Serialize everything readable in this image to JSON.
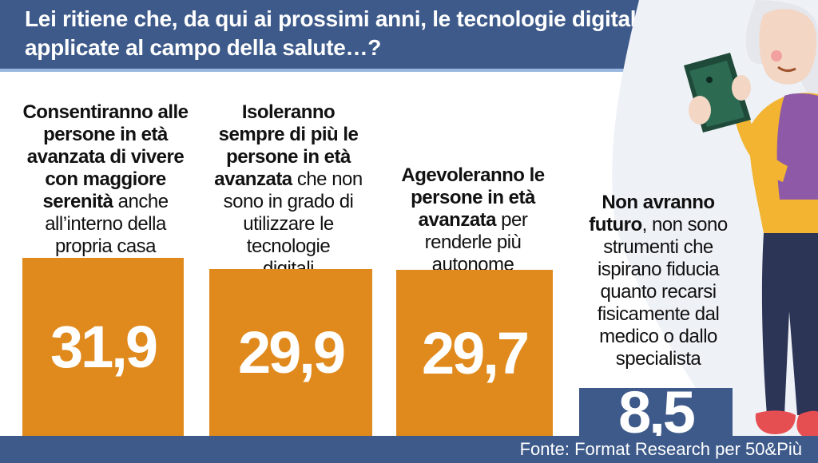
{
  "title": "Lei ritiene che, da qui ai prossimi anni, le tecnologie digitali, applicate al campo della salute…?",
  "title_lines": [
    "Lei ritiene che, da qui ai prossimi anni, le tecnologie digitali,",
    "applicate al campo della salute…?"
  ],
  "source": "Fonte: Format Research per 50&Più",
  "colors": {
    "primary_bar": "#e08a1e",
    "secondary_bar": "#3d5a8a",
    "header": "#3d5a8a"
  },
  "items": [
    {
      "label_lines": [
        [
          {
            "t": "Consentiranno alle",
            "b": true
          }
        ],
        [
          {
            "t": "persone in età",
            "b": true
          }
        ],
        [
          {
            "t": "avanzata di vivere",
            "b": true
          }
        ],
        [
          {
            "t": "con maggiore",
            "b": true
          }
        ],
        [
          {
            "t": "serenità",
            "b": true
          },
          {
            "t": " anche",
            "b": false
          }
        ],
        [
          {
            "t": "all’interno della",
            "b": false
          }
        ],
        [
          {
            "t": "propria casa",
            "b": false
          }
        ]
      ],
      "value_label": "31,9"
    },
    {
      "label_lines": [
        [
          {
            "t": "Isoleranno",
            "b": true
          }
        ],
        [
          {
            "t": "sempre di più le",
            "b": true
          }
        ],
        [
          {
            "t": "persone in età",
            "b": true
          }
        ],
        [
          {
            "t": "avanzata",
            "b": true
          },
          {
            "t": " che non",
            "b": false
          }
        ],
        [
          {
            "t": "sono in grado di",
            "b": false
          }
        ],
        [
          {
            "t": "utilizzare le",
            "b": false
          }
        ],
        [
          {
            "t": "tecnologie",
            "b": false
          }
        ],
        [
          {
            "t": "digitali",
            "b": false
          }
        ]
      ],
      "value_label": "29,9"
    },
    {
      "label_lines": [
        [
          {
            "t": "Agevoleranno le",
            "b": true
          }
        ],
        [
          {
            "t": "persone in età",
            "b": true
          }
        ],
        [
          {
            "t": "avanzata",
            "b": true
          },
          {
            "t": " per",
            "b": false
          }
        ],
        [
          {
            "t": "renderle più",
            "b": false
          }
        ],
        [
          {
            "t": "autonome",
            "b": false
          }
        ]
      ],
      "value_label": "29,7"
    },
    {
      "label_lines": [
        [
          {
            "t": "Non avranno",
            "b": true
          }
        ],
        [
          {
            "t": "futuro",
            "b": true
          },
          {
            "t": ", non sono",
            "b": false
          }
        ],
        [
          {
            "t": "strumenti che",
            "b": false
          }
        ],
        [
          {
            "t": "ispirano fiducia",
            "b": false
          }
        ],
        [
          {
            "t": "quanto recarsi",
            "b": false
          }
        ],
        [
          {
            "t": "fisicamente dal",
            "b": false
          }
        ],
        [
          {
            "t": "medico o dallo",
            "b": false
          }
        ],
        [
          {
            "t": "specialista",
            "b": false
          }
        ]
      ],
      "value_label": "8,5"
    }
  ],
  "chart_data": {
    "type": "bar",
    "title": "Lei ritiene che, da qui ai prossimi anni, le tecnologie digitali, applicate al campo della salute…?",
    "categories": [
      "Consentiranno alle persone in età avanzata di vivere con maggiore serenità anche all’interno della propria casa",
      "Isoleranno sempre di più le persone in età avanzata che non sono in grado di utilizzare le tecnologie digitali",
      "Agevoleranno le persone in età avanzata per renderle più autonome",
      "Non avranno futuro, non sono strumenti che ispirano fiducia quanto recarsi fisicamente dal medico o dallo specialista"
    ],
    "values": [
      31.9,
      29.9,
      29.7,
      8.5
    ],
    "grid": false,
    "legend": "none"
  }
}
